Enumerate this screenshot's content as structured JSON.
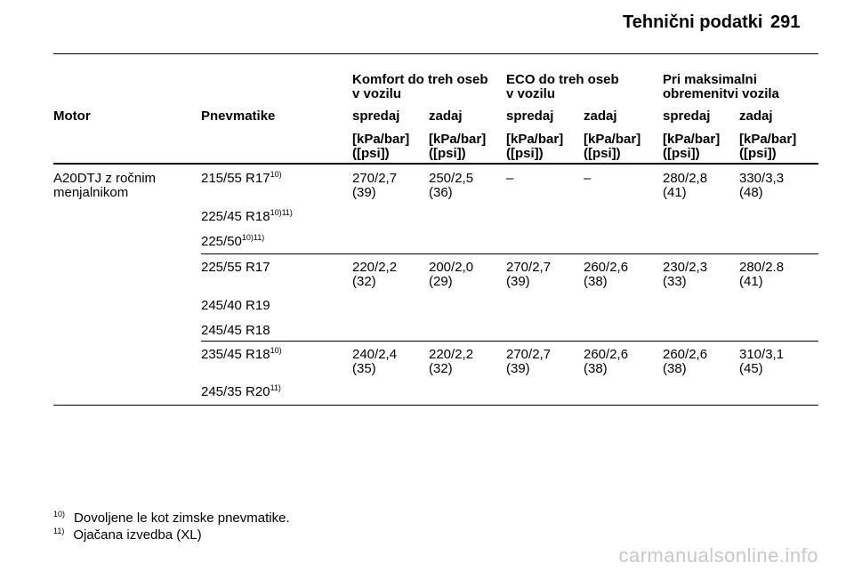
{
  "header": {
    "title": "Tehnični podatki",
    "page_number": "291"
  },
  "groups": [
    "Komfort do treh oseb v vozilu",
    "ECO do treh oseb v vozilu",
    "Pri maksimalni obremenitvi vozila"
  ],
  "group_lines": [
    [
      "Komfort do treh oseb",
      "v vozilu"
    ],
    [
      "ECO do treh oseb",
      "v vozilu"
    ],
    [
      "Pri maksimalni",
      "obremenitvi vozila"
    ]
  ],
  "columns": {
    "motor": "Motor",
    "tyres": "Pnevmatike",
    "front": "spredaj",
    "rear": "zadaj"
  },
  "unit_lines": [
    "[kPa/bar]",
    "([psi])"
  ],
  "rows": [
    {
      "motor": [
        "A20DTJ z ročnim",
        "menjalnikom"
      ],
      "tyres": [
        [
          "215/55 R17",
          "10)"
        ],
        [
          "225/45 R18",
          "10)11)"
        ],
        [
          "225/50",
          "10)11)"
        ]
      ],
      "values": [
        [
          "270/2,7",
          "(39)"
        ],
        [
          "250/2,5",
          "(36)"
        ],
        [
          "–",
          ""
        ],
        [
          "–",
          ""
        ],
        [
          "280/2,8",
          "(41)"
        ],
        [
          "330/3,3",
          "(48)"
        ]
      ]
    },
    {
      "motor": [
        "",
        ""
      ],
      "tyres": [
        [
          "225/55 R17",
          ""
        ],
        [
          "245/40 R19",
          ""
        ],
        [
          "245/45 R18",
          ""
        ]
      ],
      "values": [
        [
          "220/2,2",
          "(32)"
        ],
        [
          "200/2,0",
          "(29)"
        ],
        [
          "270/2,7",
          "(39)"
        ],
        [
          "260/2,6",
          "(38)"
        ],
        [
          "230/2,3",
          "(33)"
        ],
        [
          "280/2.8",
          "(41)"
        ]
      ]
    },
    {
      "motor": [
        "",
        ""
      ],
      "tyres": [
        [
          "235/45 R18",
          "10)"
        ],
        [
          "245/35 R20",
          "11)"
        ]
      ],
      "values": [
        [
          "240/2,4",
          "(35)"
        ],
        [
          "220/2,2",
          "(32)"
        ],
        [
          "270/2,7",
          "(39)"
        ],
        [
          "260/2,6",
          "(38)"
        ],
        [
          "260/2,6",
          "(38)"
        ],
        [
          "310/3,1",
          "(45)"
        ]
      ]
    }
  ],
  "footnotes": [
    {
      "num": "10)",
      "text": "Dovoljene le kot zimske pnevmatike."
    },
    {
      "num": "11)",
      "text": "Ojačana izvedba (XL)"
    }
  ],
  "watermark": "carmanualsonline.info"
}
